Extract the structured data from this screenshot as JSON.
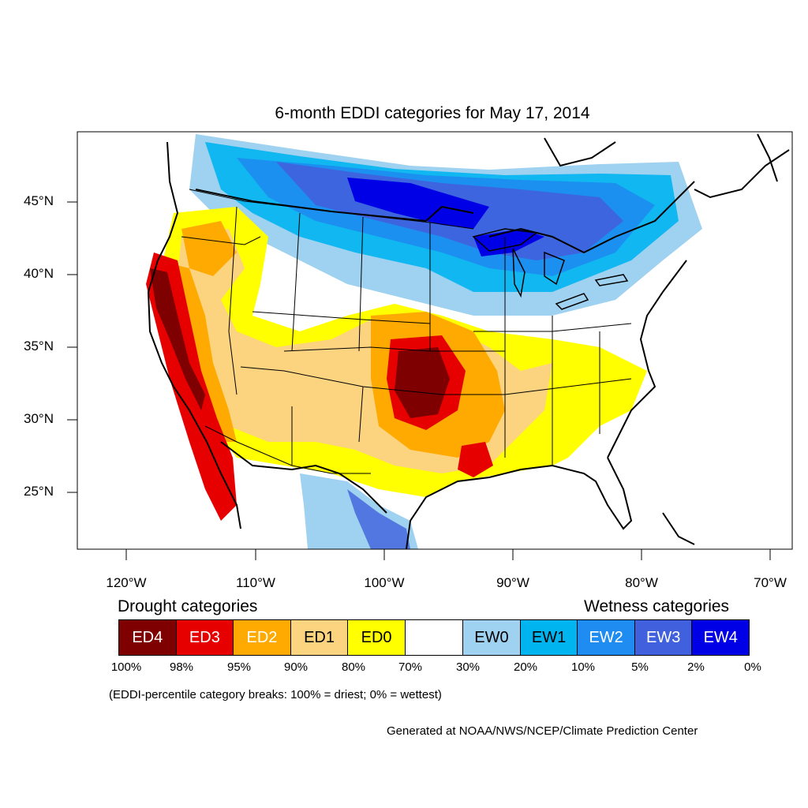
{
  "title": "6-month EDDI categories for May 17, 2014",
  "lat_labels": [
    "45°N",
    "40°N",
    "35°N",
    "30°N",
    "25°N"
  ],
  "lon_labels": [
    "120°W",
    "110°W",
    "100°W",
    "90°W",
    "80°W",
    "70°W"
  ],
  "drought_heading": "Drought categories",
  "wetness_heading": "Wetness categories",
  "categories": [
    {
      "label": "ED4",
      "color": "#7f0000",
      "text_color": "#ffffff"
    },
    {
      "label": "ED3",
      "color": "#e60000",
      "text_color": "#ffffff"
    },
    {
      "label": "ED2",
      "color": "#ffaa00",
      "text_color": "#ffffff"
    },
    {
      "label": "ED1",
      "color": "#fcd37f",
      "text_color": "#000000"
    },
    {
      "label": "ED0",
      "color": "#ffff00",
      "text_color": "#000000"
    },
    {
      "label": "",
      "color": "#ffffff",
      "text_color": "#000000"
    },
    {
      "label": "EW0",
      "color": "#9fd2f0",
      "text_color": "#000000"
    },
    {
      "label": "EW1",
      "color": "#00b4f0",
      "text_color": "#000000"
    },
    {
      "label": "EW2",
      "color": "#1e8cf0",
      "text_color": "#ffffff"
    },
    {
      "label": "EW3",
      "color": "#4060dd",
      "text_color": "#ffffff"
    },
    {
      "label": "EW4",
      "color": "#0000e6",
      "text_color": "#ffffff"
    }
  ],
  "breaks": [
    "100%",
    "98%",
    "95%",
    "90%",
    "80%",
    "70%",
    "30%",
    "20%",
    "10%",
    "5%",
    "2%",
    "0%"
  ],
  "note": "(EDDI-percentile category breaks: 100% = driest; 0% = wettest)",
  "credit": "Generated at NOAA/NWS/NCEP/Climate Prediction Center"
}
